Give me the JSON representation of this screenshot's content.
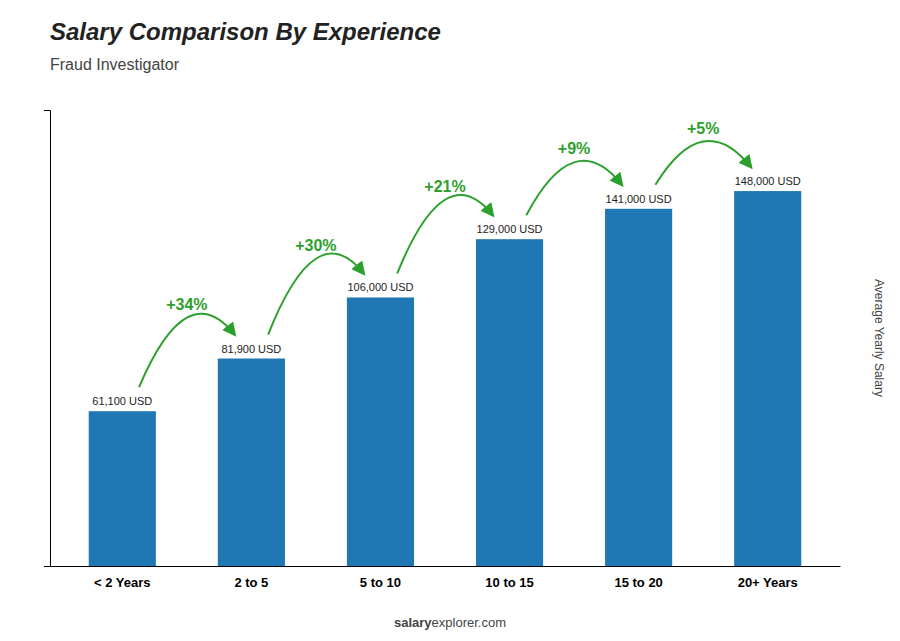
{
  "chart_data": {
    "type": "bar",
    "title": "Salary Comparison By Experience",
    "subtitle": "Fraud Investigator",
    "ylabel": "Average Yearly Salary",
    "categories": [
      "< 2 Years",
      "2 to 5",
      "5 to 10",
      "10 to 15",
      "15 to 20",
      "20+ Years"
    ],
    "values": [
      61100,
      81900,
      106000,
      129000,
      141000,
      148000
    ],
    "value_labels": [
      "61,100 USD",
      "81,900 USD",
      "106,000 USD",
      "129,000 USD",
      "141,000 USD",
      "148,000 USD"
    ],
    "data_labels": true,
    "annotations": [
      "+34%",
      "+30%",
      "+21%",
      "+9%",
      "+5%"
    ],
    "footer": [
      "salary",
      "explorer.com"
    ],
    "ylim": [
      0,
      180000
    ],
    "yticks": [],
    "tick_labels": "x",
    "grid": false
  }
}
